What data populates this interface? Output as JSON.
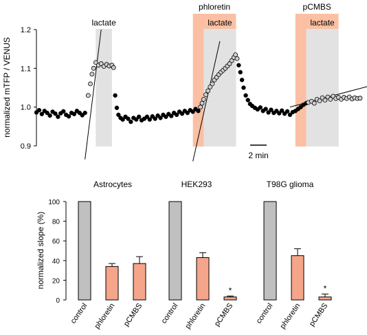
{
  "colors": {
    "inhibitor_band": "#fbc0a3",
    "lactate_band": "#e2e2e2",
    "bar_control": "#c0c0c0",
    "bar_treatment": "#f4a58a",
    "dot_black": "#000000",
    "dot_open": "#cfcfcf"
  },
  "chart_data": [
    {
      "type": "scatter",
      "ylabel": "normalized mTFP / VENUS",
      "ylim": [
        0.9,
        1.2
      ],
      "yticks": [
        "0.9",
        "1.0",
        "1.1",
        "1.2"
      ],
      "scale_bar": "2 min",
      "bands": [
        {
          "label": "lactate",
          "kind": "lactate",
          "x": [
            5.5,
            7.0
          ]
        },
        {
          "label": "phloretin",
          "kind": "inhibitor",
          "x": [
            14.5,
            18.5
          ]
        },
        {
          "label": "lactate",
          "kind": "lactate",
          "x": [
            15.5,
            18.5
          ]
        },
        {
          "label": "pCMBS",
          "kind": "inhibitor",
          "x": [
            24.0,
            28.0
          ]
        },
        {
          "label": "lactate",
          "kind": "lactate",
          "x": [
            25.0,
            28.0
          ]
        }
      ],
      "fit_lines": [
        {
          "x": [
            4.5,
            6.0
          ],
          "y": [
            0.865,
            1.2
          ]
        },
        {
          "x": [
            14.5,
            17.0
          ],
          "y": [
            0.86,
            1.17
          ]
        },
        {
          "x": [
            23.5,
            30.8
          ],
          "y": [
            1.0,
            1.054
          ]
        }
      ],
      "series": [
        {
          "style": "filled",
          "points": [
            [
              0.0,
              0.986
            ],
            [
              0.25,
              0.992
            ],
            [
              0.5,
              0.982
            ],
            [
              0.75,
              0.99
            ],
            [
              1.0,
              0.985
            ],
            [
              1.25,
              0.978
            ],
            [
              1.5,
              0.988
            ],
            [
              1.75,
              0.983
            ],
            [
              2.0,
              0.975
            ],
            [
              2.25,
              0.984
            ],
            [
              2.5,
              0.989
            ],
            [
              2.75,
              0.98
            ],
            [
              3.0,
              0.976
            ],
            [
              3.25,
              0.985
            ],
            [
              3.5,
              0.982
            ],
            [
              3.75,
              0.99
            ],
            [
              4.0,
              0.985
            ],
            [
              4.25,
              0.979
            ],
            [
              4.5,
              0.985
            ],
            [
              7.3,
              1.03
            ],
            [
              7.45,
              0.998
            ],
            [
              7.6,
              0.98
            ],
            [
              7.8,
              0.972
            ],
            [
              8.0,
              0.968
            ],
            [
              8.25,
              0.975
            ],
            [
              8.5,
              0.97
            ],
            [
              8.75,
              0.962
            ],
            [
              9.0,
              0.972
            ],
            [
              9.25,
              0.968
            ],
            [
              9.5,
              0.975
            ],
            [
              9.75,
              0.966
            ],
            [
              10.0,
              0.97
            ],
            [
              10.25,
              0.975
            ],
            [
              10.5,
              0.968
            ],
            [
              10.75,
              0.976
            ],
            [
              11.0,
              0.97
            ],
            [
              11.25,
              0.978
            ],
            [
              11.5,
              0.972
            ],
            [
              11.75,
              0.98
            ],
            [
              12.0,
              0.975
            ],
            [
              12.25,
              0.982
            ],
            [
              12.5,
              0.977
            ],
            [
              12.75,
              0.985
            ],
            [
              13.0,
              0.98
            ],
            [
              13.25,
              0.988
            ],
            [
              13.5,
              0.983
            ],
            [
              13.75,
              0.99
            ],
            [
              14.0,
              0.985
            ],
            [
              14.25,
              0.992
            ],
            [
              14.5,
              0.988
            ],
            [
              14.75,
              0.995
            ],
            [
              15.0,
              0.99
            ],
            [
              18.75,
              1.108
            ],
            [
              18.9,
              1.09
            ],
            [
              19.05,
              1.07
            ],
            [
              19.2,
              1.05
            ],
            [
              19.4,
              1.03
            ],
            [
              19.6,
              1.018
            ],
            [
              19.8,
              1.008
            ],
            [
              20.0,
              1.003
            ],
            [
              20.25,
              0.998
            ],
            [
              20.5,
              0.994
            ],
            [
              20.75,
              0.999
            ],
            [
              21.0,
              0.99
            ],
            [
              21.25,
              0.995
            ],
            [
              21.5,
              0.986
            ],
            [
              21.75,
              0.993
            ],
            [
              22.0,
              0.985
            ],
            [
              22.25,
              0.99
            ],
            [
              22.5,
              0.984
            ],
            [
              22.75,
              0.991
            ],
            [
              23.0,
              0.983
            ],
            [
              23.25,
              0.989
            ],
            [
              23.5,
              0.98
            ],
            [
              23.75,
              0.987
            ],
            [
              24.0,
              0.99
            ],
            [
              24.25,
              0.995
            ],
            [
              24.5,
              1.0
            ],
            [
              24.75,
              1.006
            ],
            [
              25.0,
              1.01
            ]
          ]
        },
        {
          "style": "open",
          "points": [
            [
              4.8,
              1.03
            ],
            [
              5.0,
              1.06
            ],
            [
              5.15,
              1.085
            ],
            [
              5.3,
              1.1
            ],
            [
              5.5,
              1.115
            ],
            [
              5.75,
              1.108
            ],
            [
              6.0,
              1.112
            ],
            [
              6.25,
              1.105
            ],
            [
              6.5,
              1.11
            ],
            [
              6.75,
              1.106
            ],
            [
              7.0,
              1.108
            ],
            [
              7.15,
              1.102
            ],
            [
              15.2,
              1.0
            ],
            [
              15.35,
              1.01
            ],
            [
              15.5,
              1.02
            ],
            [
              15.7,
              1.032
            ],
            [
              15.9,
              1.042
            ],
            [
              16.1,
              1.052
            ],
            [
              16.3,
              1.06
            ],
            [
              16.5,
              1.07
            ],
            [
              16.7,
              1.077
            ],
            [
              16.9,
              1.084
            ],
            [
              17.1,
              1.09
            ],
            [
              17.3,
              1.095
            ],
            [
              17.5,
              1.1
            ],
            [
              17.7,
              1.106
            ],
            [
              17.9,
              1.112
            ],
            [
              18.1,
              1.12
            ],
            [
              18.3,
              1.128
            ],
            [
              18.45,
              1.135
            ],
            [
              18.6,
              1.125
            ],
            [
              25.2,
              1.012
            ],
            [
              25.5,
              1.015
            ],
            [
              25.75,
              1.01
            ],
            [
              26.0,
              1.02
            ],
            [
              26.25,
              1.016
            ],
            [
              26.5,
              1.024
            ],
            [
              26.75,
              1.018
            ],
            [
              27.0,
              1.026
            ],
            [
              27.25,
              1.02
            ],
            [
              27.5,
              1.028
            ],
            [
              27.75,
              1.022
            ],
            [
              28.0,
              1.025
            ],
            [
              28.25,
              1.02
            ],
            [
              28.5,
              1.025
            ],
            [
              28.75,
              1.022
            ],
            [
              29.0,
              1.026
            ],
            [
              29.25,
              1.021
            ],
            [
              29.5,
              1.024
            ],
            [
              29.75,
              1.022
            ],
            [
              30.0,
              1.023
            ]
          ]
        }
      ]
    },
    {
      "type": "bar",
      "ylabel": "normalized slope (%)",
      "ylim": [
        0,
        100
      ],
      "yticks": [
        "0",
        "20",
        "40",
        "60",
        "80",
        "100"
      ],
      "categories": [
        "control",
        "phloretin",
        "pCMBS"
      ],
      "groups": [
        {
          "title": "Astrocytes",
          "values": [
            100,
            34,
            37
          ],
          "errors": [
            0,
            3,
            7
          ],
          "markers": [
            "",
            "",
            ""
          ]
        },
        {
          "title": "HEK293",
          "values": [
            100,
            43,
            3
          ],
          "errors": [
            0,
            5,
            1
          ],
          "markers": [
            "",
            "",
            "*"
          ]
        },
        {
          "title": "T98G glioma",
          "values": [
            100,
            45,
            3
          ],
          "errors": [
            0,
            7,
            3
          ],
          "markers": [
            "",
            "",
            "*"
          ]
        }
      ]
    }
  ]
}
